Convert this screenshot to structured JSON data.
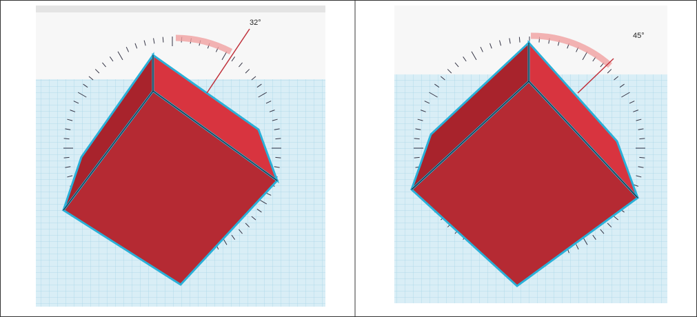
{
  "panels": [
    {
      "angle_label": "32°"
    },
    {
      "angle_label": "45°"
    }
  ]
}
